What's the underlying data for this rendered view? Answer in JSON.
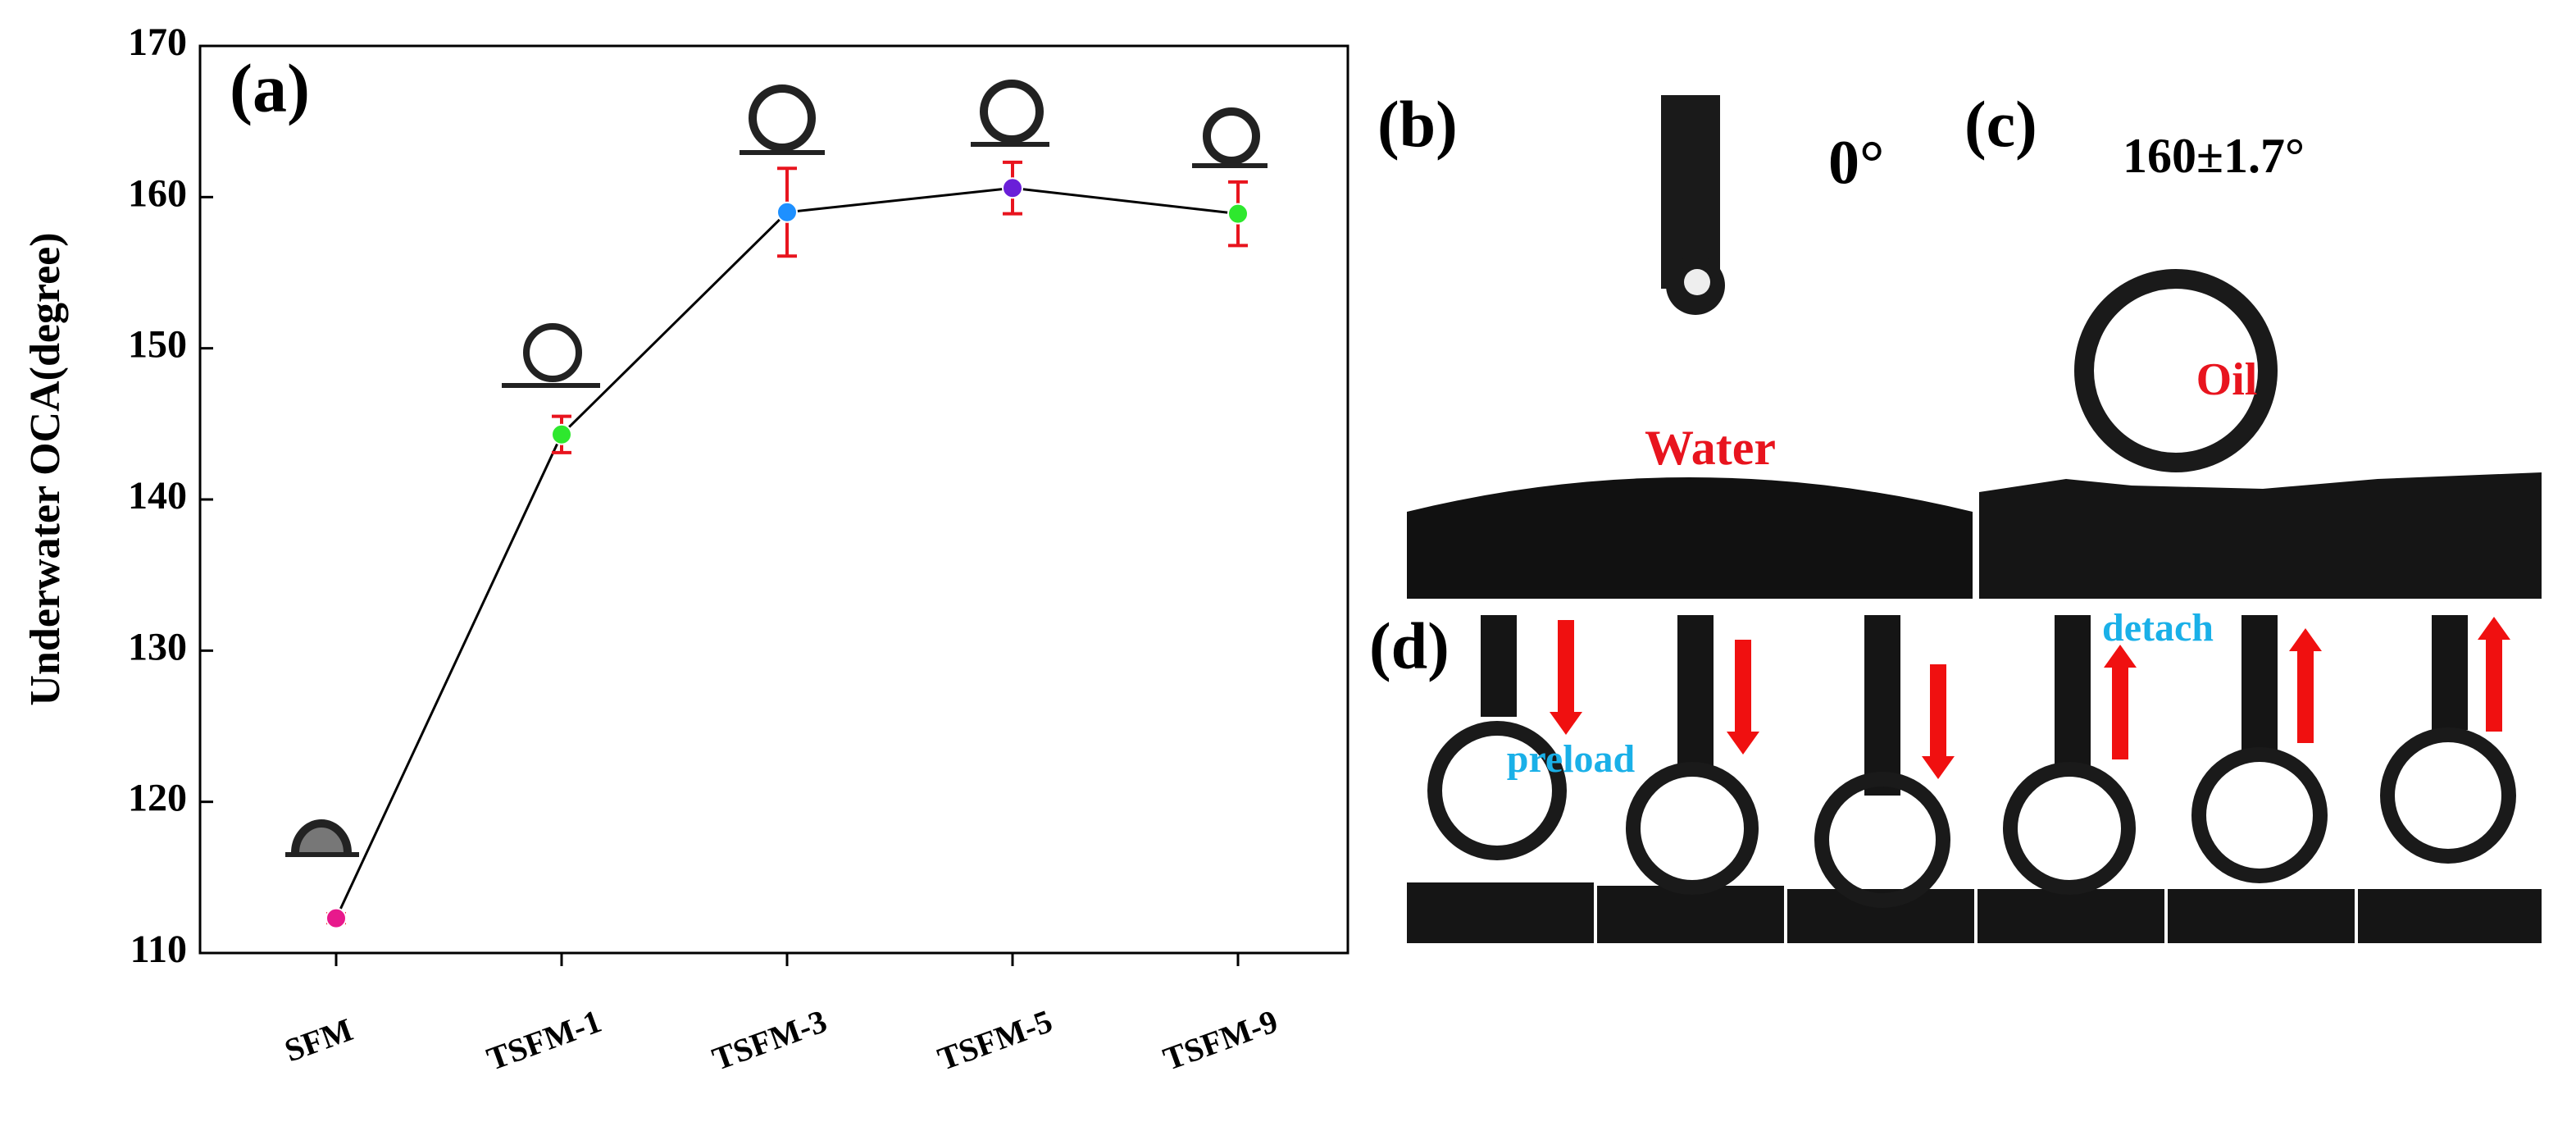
{
  "chart_data": {
    "type": "line",
    "panel_label": "(a)",
    "y_label": "Underwater OCA(degree)",
    "categories": [
      "SFM",
      "TSFM-1",
      "TSFM-3",
      "TSFM-5",
      "TSFM-9"
    ],
    "values": [
      112.3,
      144.3,
      159,
      160.6,
      158.9
    ],
    "errors": [
      0.3,
      1.2,
      2.9,
      1.7,
      2.1
    ],
    "marker_colors": [
      "#e8198c",
      "#2ee82e",
      "#1e90ff",
      "#6a1fd8",
      "#2ee82e"
    ],
    "line_color": "#000000",
    "error_color": "#e8141e",
    "ylim": [
      110,
      170
    ],
    "yticks": [
      110,
      120,
      130,
      140,
      150,
      160,
      170
    ]
  },
  "panels": {
    "b": {
      "label": "(b)",
      "angle": "0°",
      "liquid": "Water"
    },
    "c": {
      "label": "(c)",
      "angle": "160±1.7°",
      "liquid": "Oil"
    },
    "d": {
      "label": "(d)",
      "preload": "preload",
      "detach": "detach"
    }
  }
}
